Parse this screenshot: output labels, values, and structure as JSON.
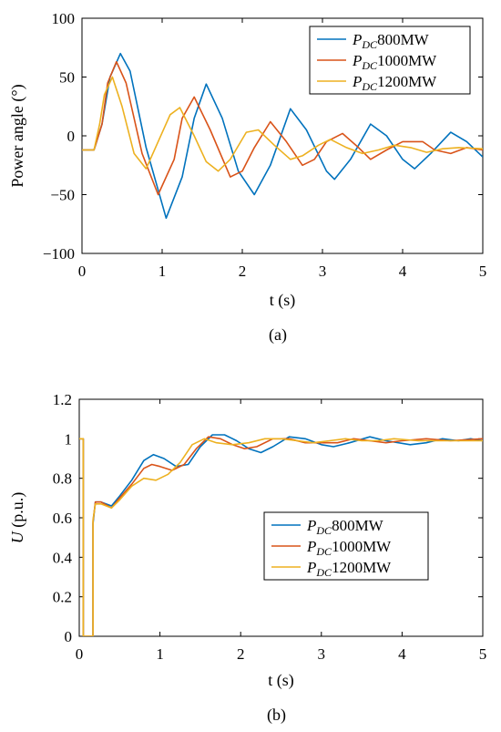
{
  "chart_data": [
    {
      "type": "line",
      "caption": "(a)",
      "xlabel": "t (s)",
      "ylabel": "Power angle (°)",
      "xlim": [
        0,
        5
      ],
      "ylim": [
        -100,
        100
      ],
      "xticks": [
        0,
        1,
        2,
        3,
        4,
        5
      ],
      "yticks": [
        -100,
        -50,
        0,
        50,
        100
      ],
      "ytick_labels": [
        "−100",
        "−50",
        "0",
        "50",
        "100"
      ],
      "grid": false,
      "legend_position": "top-right",
      "series": [
        {
          "name": "P_DC800MW",
          "name_sub": "DC",
          "name_rest": "800MW",
          "color": "#0072BD",
          "points": [
            [
              0,
              -12
            ],
            [
              0.15,
              -12
            ],
            [
              0.25,
              10
            ],
            [
              0.35,
              50
            ],
            [
              0.48,
              70
            ],
            [
              0.6,
              55
            ],
            [
              0.8,
              -10
            ],
            [
              1.05,
              -70
            ],
            [
              1.25,
              -35
            ],
            [
              1.4,
              15
            ],
            [
              1.55,
              44
            ],
            [
              1.75,
              15
            ],
            [
              1.95,
              -30
            ],
            [
              2.15,
              -50
            ],
            [
              2.35,
              -25
            ],
            [
              2.6,
              23
            ],
            [
              2.8,
              5
            ],
            [
              3.05,
              -30
            ],
            [
              3.15,
              -37
            ],
            [
              3.35,
              -20
            ],
            [
              3.6,
              10
            ],
            [
              3.8,
              0
            ],
            [
              4.0,
              -20
            ],
            [
              4.15,
              -28
            ],
            [
              4.35,
              -15
            ],
            [
              4.6,
              3
            ],
            [
              4.8,
              -5
            ],
            [
              5.0,
              -18
            ]
          ]
        },
        {
          "name": "P_DC1000MW",
          "name_sub": "DC",
          "name_rest": "1000MW",
          "color": "#D95319",
          "points": [
            [
              0,
              -12
            ],
            [
              0.15,
              -12
            ],
            [
              0.25,
              10
            ],
            [
              0.32,
              45
            ],
            [
              0.43,
              63
            ],
            [
              0.55,
              45
            ],
            [
              0.75,
              -15
            ],
            [
              0.95,
              -50
            ],
            [
              1.15,
              -20
            ],
            [
              1.25,
              15
            ],
            [
              1.4,
              33
            ],
            [
              1.6,
              5
            ],
            [
              1.85,
              -35
            ],
            [
              2.0,
              -30
            ],
            [
              2.15,
              -10
            ],
            [
              2.35,
              12
            ],
            [
              2.55,
              -5
            ],
            [
              2.75,
              -25
            ],
            [
              2.9,
              -20
            ],
            [
              3.05,
              -5
            ],
            [
              3.25,
              2
            ],
            [
              3.45,
              -10
            ],
            [
              3.6,
              -20
            ],
            [
              3.8,
              -12
            ],
            [
              4.0,
              -5
            ],
            [
              4.25,
              -5
            ],
            [
              4.4,
              -12
            ],
            [
              4.6,
              -15
            ],
            [
              4.8,
              -10
            ],
            [
              5.0,
              -12
            ]
          ]
        },
        {
          "name": "P_DC1200MW",
          "name_sub": "DC",
          "name_rest": "1200MW",
          "color": "#EDB120",
          "points": [
            [
              0,
              -12
            ],
            [
              0.15,
              -12
            ],
            [
              0.22,
              10
            ],
            [
              0.28,
              35
            ],
            [
              0.38,
              50
            ],
            [
              0.5,
              25
            ],
            [
              0.65,
              -15
            ],
            [
              0.8,
              -28
            ],
            [
              0.95,
              -5
            ],
            [
              1.1,
              18
            ],
            [
              1.22,
              24
            ],
            [
              1.4,
              0
            ],
            [
              1.55,
              -22
            ],
            [
              1.7,
              -30
            ],
            [
              1.85,
              -20
            ],
            [
              2.05,
              3
            ],
            [
              2.2,
              5
            ],
            [
              2.4,
              -8
            ],
            [
              2.6,
              -20
            ],
            [
              2.75,
              -17
            ],
            [
              2.95,
              -8
            ],
            [
              3.1,
              -3
            ],
            [
              3.3,
              -10
            ],
            [
              3.5,
              -15
            ],
            [
              3.7,
              -12
            ],
            [
              3.9,
              -8
            ],
            [
              4.1,
              -10
            ],
            [
              4.3,
              -14
            ],
            [
              4.5,
              -11
            ],
            [
              4.7,
              -10
            ],
            [
              5.0,
              -11
            ]
          ]
        }
      ]
    },
    {
      "type": "line",
      "caption": "(b)",
      "xlabel": "t (s)",
      "ylabel_italic": "U",
      "ylabel_rest": " (p.u.)",
      "xlim": [
        0,
        5
      ],
      "ylim": [
        0,
        1.2
      ],
      "xticks": [
        0,
        1,
        2,
        3,
        4,
        5
      ],
      "yticks": [
        0,
        0.2,
        0.4,
        0.6,
        0.8,
        1,
        1.2
      ],
      "ytick_labels": [
        "0",
        "0.2",
        "0.4",
        "0.6",
        "0.8",
        "1",
        "1.2"
      ],
      "grid": false,
      "legend_position": "center-right",
      "series": [
        {
          "name": "P_DC800MW",
          "name_sub": "DC",
          "name_rest": "800MW",
          "color": "#0072BD",
          "points": [
            [
              0,
              1
            ],
            [
              0.05,
              1
            ],
            [
              0.05,
              0
            ],
            [
              0.17,
              0
            ],
            [
              0.17,
              0.57
            ],
            [
              0.2,
              0.68
            ],
            [
              0.27,
              0.68
            ],
            [
              0.4,
              0.66
            ],
            [
              0.5,
              0.71
            ],
            [
              0.65,
              0.79
            ],
            [
              0.8,
              0.89
            ],
            [
              0.92,
              0.92
            ],
            [
              1.05,
              0.9
            ],
            [
              1.2,
              0.86
            ],
            [
              1.35,
              0.87
            ],
            [
              1.5,
              0.96
            ],
            [
              1.65,
              1.02
            ],
            [
              1.8,
              1.02
            ],
            [
              1.95,
              0.99
            ],
            [
              2.1,
              0.95
            ],
            [
              2.25,
              0.93
            ],
            [
              2.4,
              0.96
            ],
            [
              2.6,
              1.01
            ],
            [
              2.8,
              1.0
            ],
            [
              3.0,
              0.97
            ],
            [
              3.15,
              0.96
            ],
            [
              3.35,
              0.98
            ],
            [
              3.6,
              1.01
            ],
            [
              3.8,
              0.99
            ],
            [
              4.1,
              0.97
            ],
            [
              4.3,
              0.98
            ],
            [
              4.5,
              1.0
            ],
            [
              4.7,
              0.99
            ],
            [
              4.85,
              1.0
            ],
            [
              5.0,
              0.99
            ]
          ]
        },
        {
          "name": "P_DC1000MW",
          "name_sub": "DC",
          "name_rest": "1000MW",
          "color": "#D95319",
          "points": [
            [
              0,
              1
            ],
            [
              0.05,
              1
            ],
            [
              0.05,
              0
            ],
            [
              0.17,
              0
            ],
            [
              0.17,
              0.58
            ],
            [
              0.2,
              0.68
            ],
            [
              0.27,
              0.68
            ],
            [
              0.4,
              0.65
            ],
            [
              0.5,
              0.7
            ],
            [
              0.65,
              0.77
            ],
            [
              0.8,
              0.85
            ],
            [
              0.9,
              0.87
            ],
            [
              1.0,
              0.86
            ],
            [
              1.15,
              0.84
            ],
            [
              1.3,
              0.87
            ],
            [
              1.45,
              0.95
            ],
            [
              1.6,
              1.01
            ],
            [
              1.75,
              1.0
            ],
            [
              1.9,
              0.97
            ],
            [
              2.05,
              0.95
            ],
            [
              2.2,
              0.96
            ],
            [
              2.4,
              1.0
            ],
            [
              2.6,
              1.0
            ],
            [
              2.8,
              0.98
            ],
            [
              3.0,
              0.98
            ],
            [
              3.2,
              0.98
            ],
            [
              3.4,
              1.0
            ],
            [
              3.6,
              0.99
            ],
            [
              3.8,
              0.98
            ],
            [
              4.0,
              0.99
            ],
            [
              4.3,
              1.0
            ],
            [
              4.6,
              0.99
            ],
            [
              5.0,
              1.0
            ]
          ]
        },
        {
          "name": "P_DC1200MW",
          "name_sub": "DC",
          "name_rest": "1200MW",
          "color": "#EDB120",
          "points": [
            [
              0,
              1
            ],
            [
              0.05,
              1
            ],
            [
              0.05,
              0
            ],
            [
              0.17,
              0
            ],
            [
              0.17,
              0.59
            ],
            [
              0.2,
              0.67
            ],
            [
              0.27,
              0.67
            ],
            [
              0.4,
              0.65
            ],
            [
              0.5,
              0.69
            ],
            [
              0.65,
              0.76
            ],
            [
              0.8,
              0.8
            ],
            [
              0.95,
              0.79
            ],
            [
              1.1,
              0.82
            ],
            [
              1.25,
              0.88
            ],
            [
              1.4,
              0.97
            ],
            [
              1.55,
              1.0
            ],
            [
              1.7,
              0.98
            ],
            [
              1.9,
              0.97
            ],
            [
              2.1,
              0.98
            ],
            [
              2.3,
              1.0
            ],
            [
              2.5,
              1.0
            ],
            [
              2.7,
              0.99
            ],
            [
              2.9,
              0.98
            ],
            [
              3.1,
              0.99
            ],
            [
              3.3,
              1.0
            ],
            [
              3.5,
              0.99
            ],
            [
              3.7,
              0.99
            ],
            [
              3.9,
              1.0
            ],
            [
              4.2,
              0.99
            ],
            [
              4.5,
              0.99
            ],
            [
              5.0,
              0.99
            ]
          ]
        }
      ]
    }
  ]
}
